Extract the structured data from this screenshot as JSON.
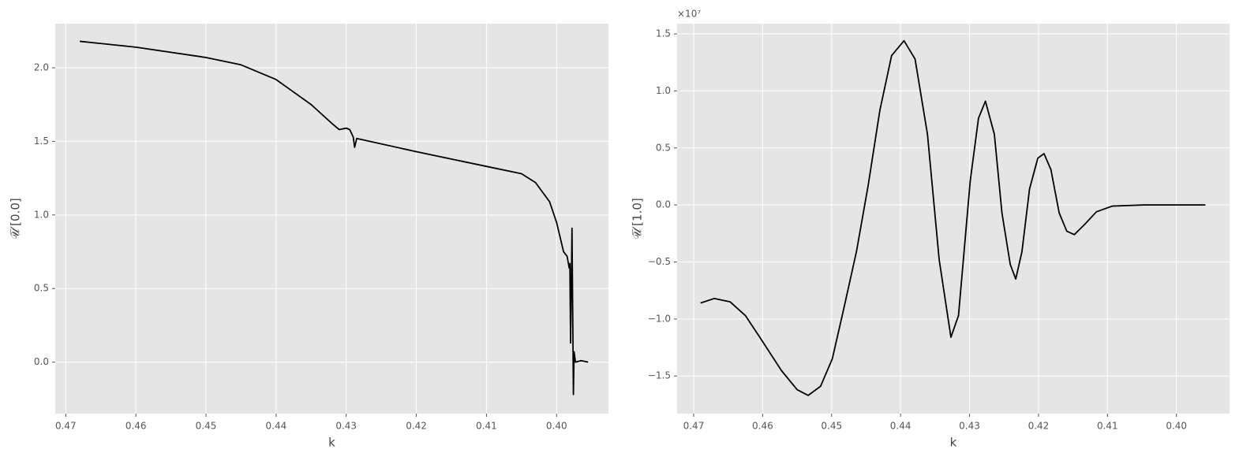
{
  "chart_data": [
    {
      "type": "line",
      "xlabel": "k",
      "ylabel": "𝒰̅′[0.0]",
      "grid": true,
      "x_reversed": true,
      "xlim": [
        0.4715,
        0.3926
      ],
      "ylim": [
        -0.35,
        2.3
      ],
      "xticks": [
        {
          "value": 0.47,
          "label": "0.47"
        },
        {
          "value": 0.46,
          "label": "0.46"
        },
        {
          "value": 0.45,
          "label": "0.45"
        },
        {
          "value": 0.44,
          "label": "0.44"
        },
        {
          "value": 0.43,
          "label": "0.43"
        },
        {
          "value": 0.42,
          "label": "0.42"
        },
        {
          "value": 0.41,
          "label": "0.41"
        },
        {
          "value": 0.4,
          "label": "0.40"
        }
      ],
      "yticks": [
        {
          "value": 0,
          "label": "0.0"
        },
        {
          "value": 0.5,
          "label": "0.5"
        },
        {
          "value": 1,
          "label": "1.0"
        },
        {
          "value": 1.5,
          "label": "1.5"
        },
        {
          "value": 2,
          "label": "2.0"
        }
      ],
      "x": [
        0.468,
        0.46,
        0.45,
        0.445,
        0.44,
        0.435,
        0.432,
        0.431,
        0.43,
        0.4295,
        0.429,
        0.4288,
        0.4285,
        0.42,
        0.415,
        0.41,
        0.405,
        0.403,
        0.401,
        0.4,
        0.3995,
        0.399,
        0.3985,
        0.3982,
        0.3981,
        0.398,
        0.3978,
        0.3976,
        0.3975,
        0.3973,
        0.3965,
        0.3955
      ],
      "series": [
        {
          "color": "#000000",
          "values": [
            2.18,
            2.14,
            2.07,
            2.02,
            1.92,
            1.75,
            1.62,
            1.58,
            1.59,
            1.58,
            1.53,
            1.46,
            1.52,
            1.43,
            1.38,
            1.33,
            1.28,
            1.22,
            1.09,
            0.95,
            0.85,
            0.75,
            0.72,
            0.64,
            0.67,
            0.13,
            0.91,
            -0.22,
            0.07,
            0.0,
            0.01,
            0.0
          ]
        }
      ]
    },
    {
      "type": "line",
      "xlabel": "k",
      "ylabel": "𝒰̅′[1.0]",
      "y_offset_label": "×10⁷",
      "grid": true,
      "x_reversed": true,
      "xlim": [
        0.4724,
        0.3923
      ],
      "ylim": [
        -1.83,
        1.59
      ],
      "xticks": [
        {
          "value": 0.47,
          "label": "0.47"
        },
        {
          "value": 0.46,
          "label": "0.46"
        },
        {
          "value": 0.45,
          "label": "0.45"
        },
        {
          "value": 0.44,
          "label": "0.44"
        },
        {
          "value": 0.43,
          "label": "0.43"
        },
        {
          "value": 0.42,
          "label": "0.42"
        },
        {
          "value": 0.41,
          "label": "0.41"
        },
        {
          "value": 0.4,
          "label": "0.40"
        }
      ],
      "yticks": [
        {
          "value": -1.5,
          "label": "−1.5"
        },
        {
          "value": -1,
          "label": "−1.0"
        },
        {
          "value": -0.5,
          "label": "−0.5"
        },
        {
          "value": 0,
          "label": "0.0"
        },
        {
          "value": 0.5,
          "label": "0.5"
        },
        {
          "value": 1,
          "label": "1.0"
        },
        {
          "value": 1.5,
          "label": "1.5"
        }
      ],
      "x": [
        0.469,
        0.467,
        0.4647,
        0.4625,
        0.4602,
        0.4573,
        0.455,
        0.4534,
        0.4516,
        0.4499,
        0.4482,
        0.4464,
        0.4447,
        0.443,
        0.4413,
        0.4395,
        0.4379,
        0.4361,
        0.4344,
        0.4327,
        0.4316,
        0.4299,
        0.4287,
        0.4277,
        0.4264,
        0.4253,
        0.4241,
        0.4233,
        0.4224,
        0.4213,
        0.4201,
        0.4192,
        0.4182,
        0.417,
        0.4159,
        0.4148,
        0.4133,
        0.4116,
        0.4093,
        0.4047,
        0.3958
      ],
      "series": [
        {
          "color": "#000000",
          "values": [
            -0.86,
            -0.82,
            -0.85,
            -0.97,
            -1.18,
            -1.45,
            -1.62,
            -1.67,
            -1.59,
            -1.35,
            -0.9,
            -0.41,
            0.17,
            0.83,
            1.31,
            1.44,
            1.28,
            0.62,
            -0.48,
            -1.16,
            -0.97,
            0.21,
            0.76,
            0.91,
            0.62,
            -0.07,
            -0.52,
            -0.65,
            -0.41,
            0.14,
            0.41,
            0.45,
            0.31,
            -0.07,
            -0.23,
            -0.26,
            -0.17,
            -0.06,
            -0.01,
            0,
            0
          ]
        }
      ]
    }
  ]
}
